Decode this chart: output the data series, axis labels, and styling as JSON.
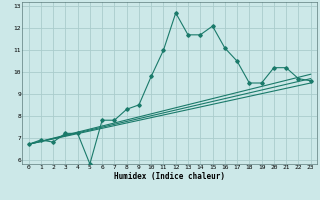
{
  "xlabel": "Humidex (Indice chaleur)",
  "bg_color": "#cce8e8",
  "grid_color": "#aacccc",
  "line_color": "#1a7a6a",
  "xlim": [
    -0.5,
    23.5
  ],
  "ylim": [
    5.8,
    13.2
  ],
  "xticks": [
    0,
    1,
    2,
    3,
    4,
    5,
    6,
    7,
    8,
    9,
    10,
    11,
    12,
    13,
    14,
    15,
    16,
    17,
    18,
    19,
    20,
    21,
    22,
    23
  ],
  "yticks": [
    6,
    7,
    8,
    9,
    10,
    11,
    12,
    13
  ],
  "series1_x": [
    0,
    1,
    2,
    3,
    4,
    5,
    6,
    7,
    8,
    9,
    10,
    11,
    12,
    13,
    14,
    15,
    16,
    17,
    18,
    19,
    20,
    21,
    22,
    23
  ],
  "series1_y": [
    6.7,
    6.9,
    6.8,
    7.2,
    7.2,
    5.8,
    7.8,
    7.8,
    8.3,
    8.5,
    9.8,
    11.0,
    12.7,
    11.7,
    11.7,
    12.1,
    11.1,
    10.5,
    9.5,
    9.5,
    10.2,
    10.2,
    9.7,
    9.6
  ],
  "series2_x": [
    0,
    23
  ],
  "series2_y": [
    6.7,
    9.7
  ],
  "series3_x": [
    0,
    23
  ],
  "series3_y": [
    6.7,
    9.9
  ],
  "series4_x": [
    0,
    23
  ],
  "series4_y": [
    6.7,
    9.5
  ]
}
